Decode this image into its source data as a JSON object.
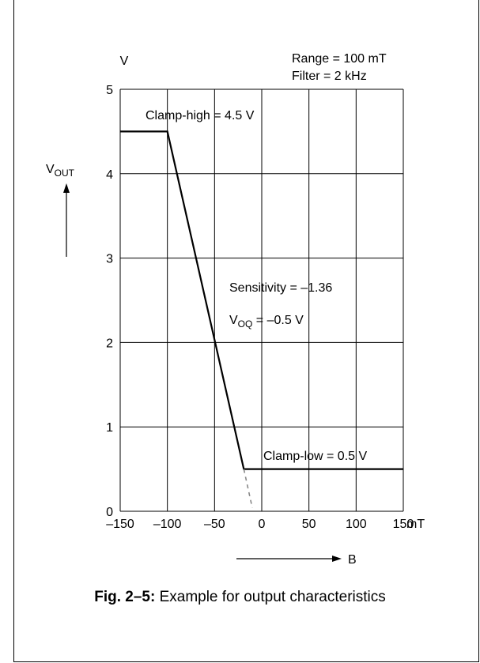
{
  "chart_data": {
    "type": "line",
    "ylabel_main": "V",
    "ylabel_sub": "OUT",
    "yunit": "V",
    "xlabel": "B",
    "xunit": "mT",
    "xlim": [
      -150,
      150
    ],
    "ylim": [
      0,
      5
    ],
    "xticks": [
      "–150",
      "–100",
      "–50",
      "0",
      "50",
      "100",
      "150"
    ],
    "xtick_values": [
      -150,
      -100,
      -50,
      0,
      50,
      100,
      150
    ],
    "yticks": [
      "0",
      "1",
      "2",
      "3",
      "4",
      "5"
    ],
    "ytick_values": [
      0,
      1,
      2,
      3,
      4,
      5
    ],
    "grid": true,
    "series": [
      {
        "x": [
          -150,
          -100,
          -19,
          150
        ],
        "y": [
          4.5,
          4.5,
          0.5,
          0.5
        ],
        "style": "solid"
      },
      {
        "x": [
          -19,
          -10
        ],
        "y": [
          0.5,
          0.04
        ],
        "style": "dashed"
      }
    ],
    "annotations": {
      "range": "Range = 100 mT",
      "filter": "Filter = 2 kHz",
      "clamp_high": "Clamp-high = 4.5 V",
      "clamp_low": "Clamp-low = 0.5 V",
      "sensitivity": "Sensitivity = –1.36",
      "voq_main": "V",
      "voq_sub": "OQ",
      "voq_value": " = –0.5 V"
    }
  },
  "caption": {
    "bold": "Fig. 2–5:",
    "text": " Example for output characteristics"
  }
}
